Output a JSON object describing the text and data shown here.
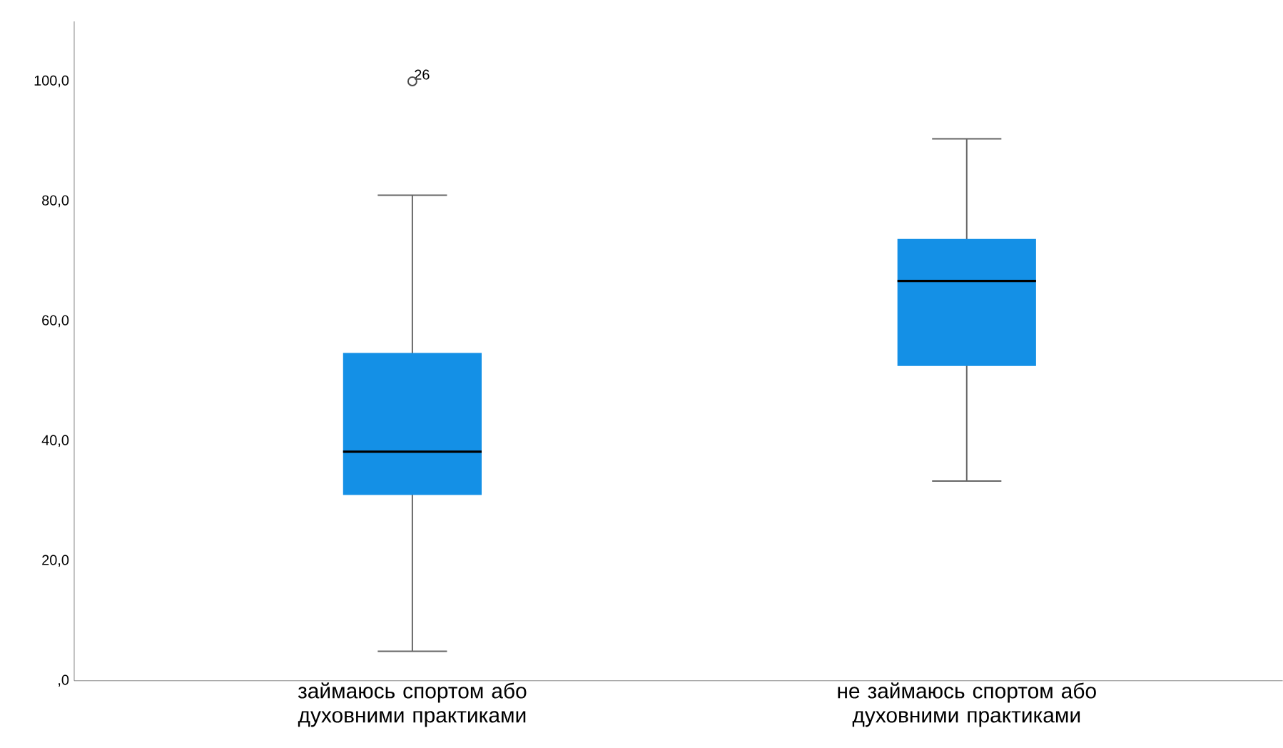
{
  "chart_data": {
    "type": "box",
    "categories": [
      "займаюсь спортом або духовними практиками",
      "не займаюсь спортом або духовними практиками"
    ],
    "boxes": [
      {
        "low": 4.9,
        "q1": 31.0,
        "median": 38.2,
        "q3": 54.7,
        "high": 81.0,
        "outliers": [
          100
        ]
      },
      {
        "low": 33.3,
        "q1": 52.5,
        "median": 66.7,
        "q3": 73.7,
        "high": 90.4
      }
    ],
    "color": "#1490e6",
    "ylim": [
      0,
      110
    ],
    "yticks": [
      {
        "value": 0,
        "label": ",0"
      },
      {
        "value": 20,
        "label": "20,0"
      },
      {
        "value": 40,
        "label": "40,0"
      },
      {
        "value": 60,
        "label": "60,0"
      },
      {
        "value": 80,
        "label": "80,0"
      },
      {
        "value": 100,
        "label": "100,0"
      }
    ],
    "annotations": [
      "26"
    ],
    "grid": false
  }
}
